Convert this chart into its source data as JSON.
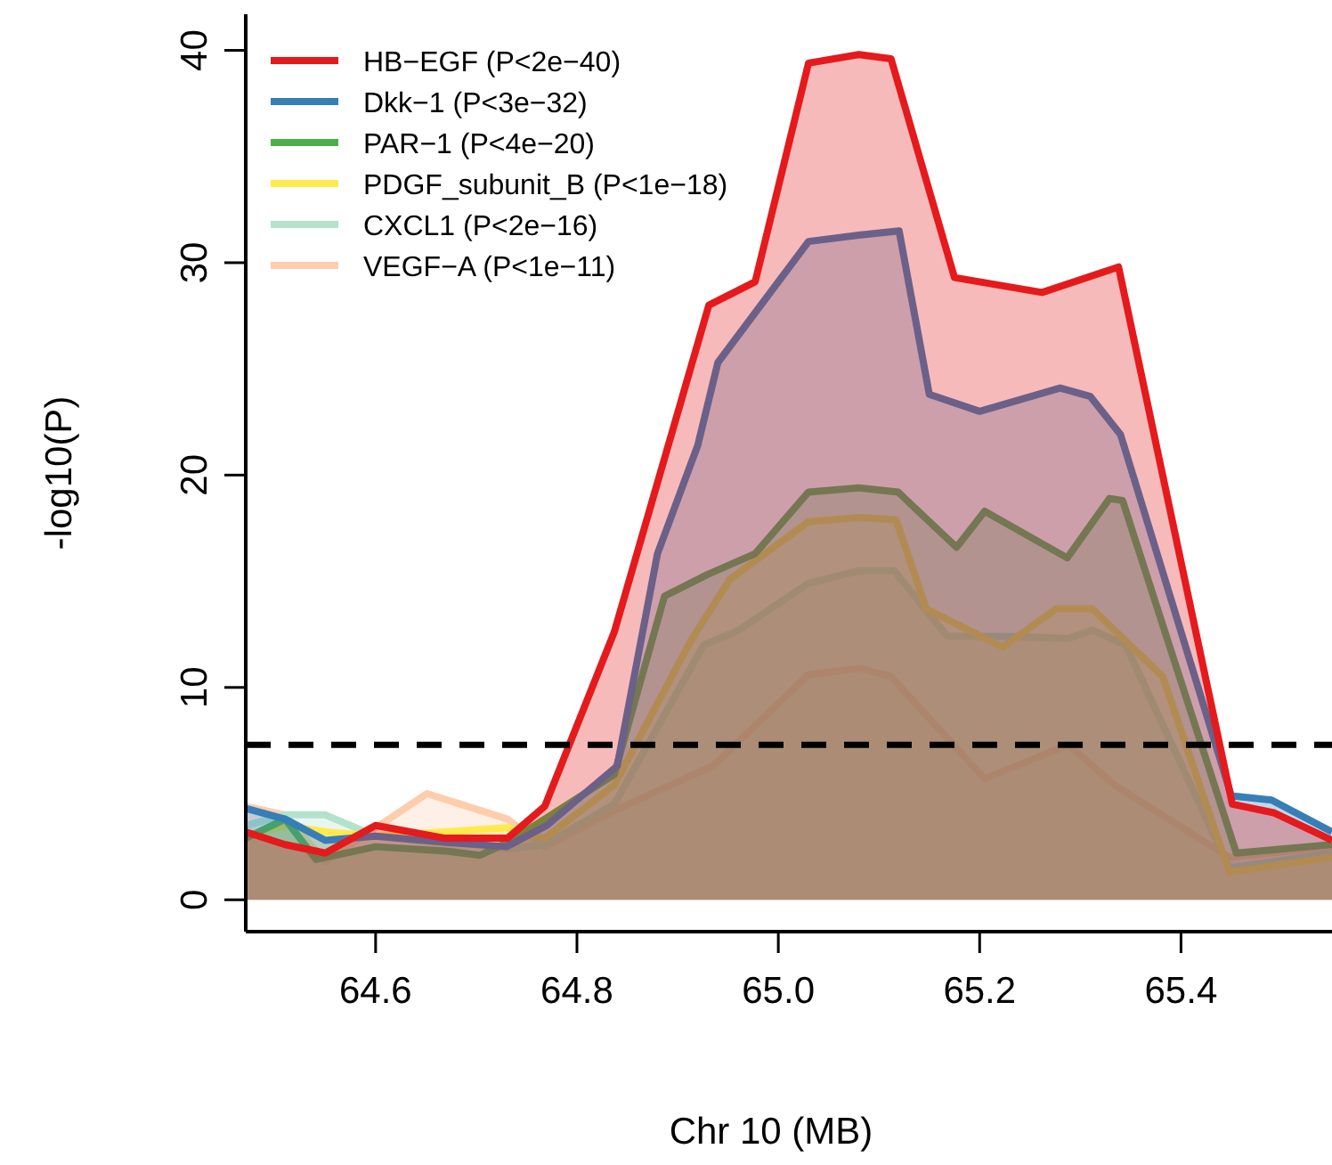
{
  "chart_data": {
    "type": "area",
    "xlabel": "Chr 10 (MB)",
    "ylabel": "-log10(P)",
    "xlim": [
      64.471,
      65.55
    ],
    "ylim": [
      -1.5,
      41.7
    ],
    "xticks": [
      {
        "value": 64.6,
        "label": "64.6"
      },
      {
        "value": 64.8,
        "label": "64.8"
      },
      {
        "value": 65.0,
        "label": "65.0"
      },
      {
        "value": 65.2,
        "label": "65.2"
      },
      {
        "value": 65.4,
        "label": "65.4"
      }
    ],
    "yticks": [
      0,
      10,
      20,
      30,
      40
    ],
    "grid": false,
    "legend": "top left",
    "ref_lines": [
      {
        "axis": "y",
        "value": 7.3,
        "line_style": "dashed",
        "color": "#000000"
      }
    ],
    "series": [
      {
        "name": "HB−EGF (P<2e−40)",
        "color": "#e41a1c",
        "x": [
          64.471,
          64.51,
          64.55,
          64.6,
          64.669,
          64.731,
          64.768,
          64.837,
          64.931,
          64.977,
          65.03,
          65.08,
          65.112,
          65.175,
          65.262,
          65.338,
          65.451,
          65.492,
          65.55
        ],
        "values": [
          3.2,
          2.6,
          2.2,
          3.5,
          2.9,
          2.9,
          4.4,
          12.6,
          28.0,
          29.1,
          39.4,
          39.8,
          39.6,
          29.3,
          28.6,
          29.8,
          4.5,
          4.1,
          2.8
        ]
      },
      {
        "name": "Dkk−1 (P<3e−32)",
        "color": "#377eb8",
        "x": [
          64.471,
          64.51,
          64.55,
          64.6,
          64.67,
          64.73,
          64.77,
          64.84,
          64.88,
          64.92,
          64.94,
          65.03,
          65.08,
          65.12,
          65.15,
          65.2,
          65.28,
          65.31,
          65.34,
          65.45,
          65.49,
          65.55
        ],
        "values": [
          4.3,
          3.8,
          2.8,
          3.0,
          2.7,
          2.5,
          3.5,
          6.3,
          16.3,
          21.4,
          25.3,
          31.0,
          31.3,
          31.5,
          23.8,
          23.0,
          24.1,
          23.7,
          21.9,
          4.9,
          4.7,
          3.2
        ]
      },
      {
        "name": "PAR−1 (P<4e−20)",
        "color": "#4daf4a",
        "x": [
          64.471,
          64.51,
          64.541,
          64.6,
          64.669,
          64.704,
          64.731,
          64.768,
          64.837,
          64.887,
          64.929,
          64.977,
          65.03,
          65.08,
          65.119,
          65.177,
          65.205,
          65.287,
          65.329,
          65.342,
          65.455,
          65.55
        ],
        "values": [
          2.9,
          3.8,
          1.9,
          2.5,
          2.3,
          2.1,
          2.7,
          3.8,
          5.9,
          14.3,
          15.3,
          16.3,
          19.2,
          19.4,
          19.2,
          16.6,
          18.3,
          16.1,
          18.9,
          18.8,
          2.2,
          2.6
        ]
      },
      {
        "name": "PDGF_subunit_B (P<1e−18)",
        "color": "#ffe94d",
        "x": [
          64.471,
          64.51,
          64.55,
          64.6,
          64.669,
          64.731,
          64.768,
          64.837,
          64.913,
          64.952,
          65.03,
          65.08,
          65.117,
          65.147,
          65.223,
          65.276,
          65.312,
          65.382,
          65.448,
          65.55
        ],
        "values": [
          3.0,
          3.5,
          3.2,
          3.0,
          3.2,
          3.4,
          2.9,
          5.4,
          12.2,
          15.1,
          17.8,
          18.0,
          17.9,
          13.7,
          11.9,
          13.7,
          13.7,
          10.5,
          1.3,
          2.0
        ]
      },
      {
        "name": "CXCL1 (P<2e−16)",
        "color": "#b3e2cd",
        "x": [
          64.471,
          64.51,
          64.55,
          64.6,
          64.669,
          64.731,
          64.768,
          64.837,
          64.926,
          64.961,
          65.03,
          65.08,
          65.115,
          65.168,
          65.23,
          65.288,
          65.312,
          65.345,
          65.448,
          65.55
        ],
        "values": [
          3.5,
          4.0,
          4.0,
          3.0,
          2.6,
          2.4,
          2.6,
          4.5,
          12.0,
          12.7,
          14.9,
          15.5,
          15.5,
          12.4,
          12.4,
          12.3,
          12.7,
          12.0,
          1.5,
          2.2
        ]
      },
      {
        "name": "VEGF−A (P<1e−11)",
        "color": "#fdcdac",
        "x": [
          64.471,
          64.51,
          64.55,
          64.651,
          64.731,
          64.768,
          64.837,
          64.935,
          65.03,
          65.081,
          65.112,
          65.205,
          65.288,
          65.334,
          65.448,
          65.55
        ],
        "values": [
          4.4,
          4.0,
          1.8,
          5.0,
          3.8,
          2.5,
          4.2,
          6.3,
          10.6,
          10.9,
          10.5,
          5.7,
          7.3,
          5.4,
          2.0,
          2.5
        ]
      }
    ]
  }
}
